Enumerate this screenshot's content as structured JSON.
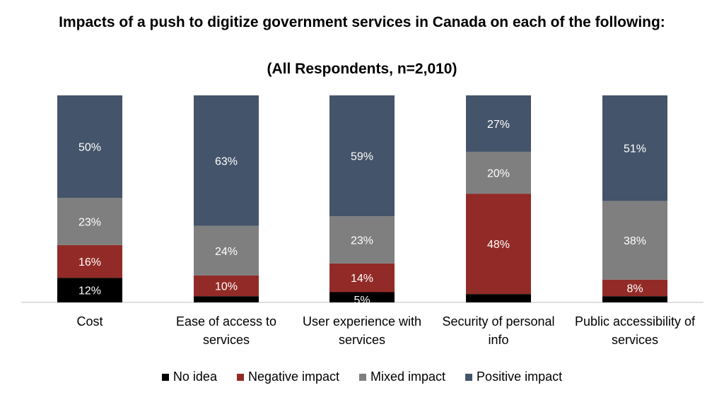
{
  "chart_data": {
    "type": "bar",
    "stacked": true,
    "title": "Impacts of a push to digitize government services in Canada on each of the following:",
    "subtitle": "(All Respondents, n=2,010)",
    "categories": [
      [
        "Cost"
      ],
      [
        "Ease of access to",
        "services"
      ],
      [
        "User experience with",
        "services"
      ],
      [
        "Security of personal",
        "info"
      ],
      [
        "Public accessibility of",
        "services"
      ]
    ],
    "series": [
      {
        "name": "No idea",
        "color": "#000000",
        "values": [
          12,
          3,
          5,
          4,
          3
        ],
        "labels": [
          "12%",
          "",
          "5%",
          "",
          ""
        ]
      },
      {
        "name": "Negative impact",
        "color": "#922b27",
        "values": [
          16,
          10,
          14,
          48,
          8
        ],
        "labels": [
          "16%",
          "10%",
          "14%",
          "48%",
          "8%"
        ]
      },
      {
        "name": "Mixed impact",
        "color": "#7f7f7f",
        "values": [
          23,
          24,
          23,
          20,
          38
        ],
        "labels": [
          "23%",
          "24%",
          "23%",
          "20%",
          "38%"
        ]
      },
      {
        "name": "Positive impact",
        "color": "#44546a",
        "values": [
          50,
          63,
          59,
          27,
          51
        ],
        "labels": [
          "50%",
          "63%",
          "59%",
          "27%",
          "51%"
        ]
      }
    ],
    "xlabel": "",
    "ylabel": "",
    "ylim": [
      0,
      100
    ],
    "legend_position": "bottom"
  }
}
